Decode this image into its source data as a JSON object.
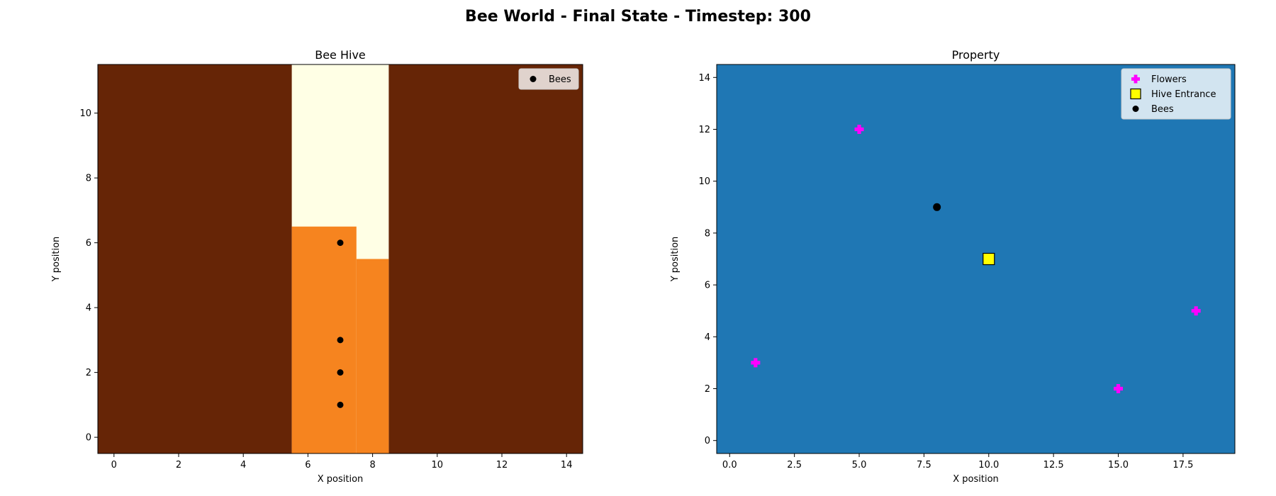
{
  "figure": {
    "title": "Bee World - Final State - Timestep: 300"
  },
  "colors": {
    "hive_wall": "#662506",
    "hive_empty": "#ffffe5",
    "hive_honey": "#f6841f",
    "property_bg": "#1f77b4",
    "bee": "#000000",
    "flower": "#ff00ff",
    "hive_entrance": "#ffff00"
  },
  "chart_data": [
    {
      "type": "heatmap",
      "title": "Bee Hive",
      "xlabel": "X position",
      "ylabel": "Y position",
      "xlim": [
        -0.5,
        14.5
      ],
      "ylim": [
        -0.5,
        11.5
      ],
      "xticks": [
        0,
        2,
        4,
        6,
        8,
        10,
        12,
        14
      ],
      "yticks": [
        0,
        2,
        4,
        6,
        8,
        10
      ],
      "legend": {
        "placement": "upper-right",
        "entries": [
          "Bees"
        ]
      },
      "cells": {
        "default": "wall",
        "regions": [
          {
            "kind": "empty",
            "x": [
              6,
              8
            ],
            "y": [
              0,
              11
            ]
          },
          {
            "kind": "honey",
            "x": [
              6,
              7
            ],
            "y": [
              0,
              6
            ]
          },
          {
            "kind": "honey",
            "x": [
              8,
              8
            ],
            "y": [
              0,
              5
            ]
          }
        ]
      },
      "series": [
        {
          "name": "Bees",
          "marker": "circle",
          "points": [
            [
              7,
              6
            ],
            [
              7,
              3
            ],
            [
              7,
              2
            ],
            [
              7,
              1
            ]
          ]
        }
      ]
    },
    {
      "type": "scatter",
      "title": "Property",
      "xlabel": "X position",
      "ylabel": "Y position",
      "xlim": [
        -0.5,
        19.5
      ],
      "ylim": [
        -0.5,
        14.5
      ],
      "xticks": [
        0.0,
        2.5,
        5.0,
        7.5,
        10.0,
        12.5,
        15.0,
        17.5
      ],
      "xtick_labels": [
        "0.0",
        "2.5",
        "5.0",
        "7.5",
        "10.0",
        "12.5",
        "15.0",
        "17.5"
      ],
      "yticks": [
        0,
        2,
        4,
        6,
        8,
        10,
        12,
        14
      ],
      "legend": {
        "placement": "upper-right",
        "entries": [
          "Flowers",
          "Hive Entrance",
          "Bees"
        ]
      },
      "series": [
        {
          "name": "Flowers",
          "marker": "plus",
          "points": [
            [
              5,
              12
            ],
            [
              1,
              3
            ],
            [
              15,
              2
            ],
            [
              18,
              5
            ]
          ]
        },
        {
          "name": "Hive Entrance",
          "marker": "square",
          "points": [
            [
              10,
              7
            ]
          ]
        },
        {
          "name": "Bees",
          "marker": "circle",
          "points": [
            [
              8,
              9
            ]
          ]
        }
      ]
    }
  ]
}
